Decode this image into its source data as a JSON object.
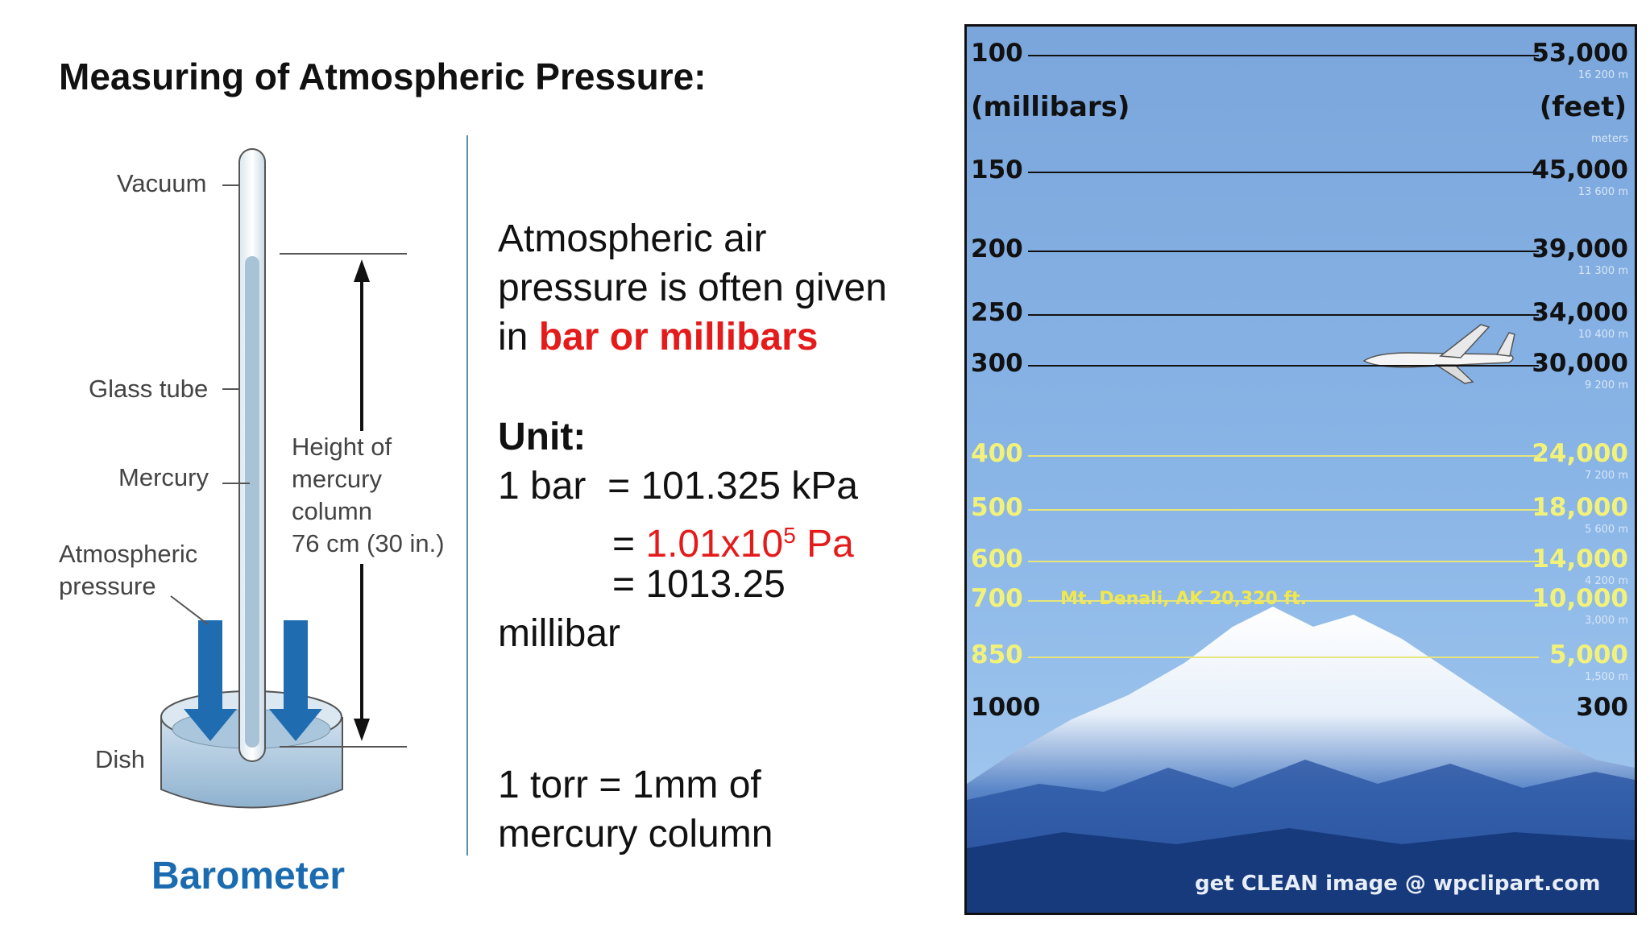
{
  "slide": {
    "title": "Measuring of Atmospheric Pressure:"
  },
  "barometer": {
    "labels": {
      "vacuum": "Vacuum",
      "glass_tube": "Glass tube",
      "mercury": "Mercury",
      "atmospheric_pressure_1": "Atmospheric",
      "atmospheric_pressure_2": "pressure",
      "dish": "Dish",
      "height_1": "Height of",
      "height_2": "mercury",
      "height_3": "column",
      "height_4": "76 cm (30 in.)"
    },
    "caption": "Barometer"
  },
  "text": {
    "intro_1": "Atmospheric air",
    "intro_2": "pressure is often given",
    "intro_3_prefix": "in ",
    "intro_3_highlight": "bar or millibars",
    "unit_heading": "Unit:",
    "eq_1": "1 bar  = 101.325 kPa",
    "eq_2_prefix": "= ",
    "eq_2_value": "1.01x10",
    "eq_2_exp": "5",
    "eq_2_unit": " Pa",
    "eq_3": "= 1013.25",
    "eq_3_cont": "millibar",
    "torr_1": "1 torr = 1mm of",
    "torr_2": "mercury column"
  },
  "altitude_chart": {
    "left_header": "(millibars)",
    "right_header": "(feet)",
    "right_sub": "meters",
    "rows": [
      {
        "mb": "100",
        "feet": "53,000",
        "m": "16 200 m"
      },
      {
        "mb": "150",
        "feet": "45,000",
        "m": "13 600 m"
      },
      {
        "mb": "200",
        "feet": "39,000",
        "m": "11 300 m"
      },
      {
        "mb": "250",
        "feet": "34,000",
        "m": "10 400 m"
      },
      {
        "mb": "300",
        "feet": "30,000",
        "m": "9 200 m"
      },
      {
        "mb": "400",
        "feet": "24,000",
        "m": "7 200 m"
      },
      {
        "mb": "500",
        "feet": "18,000",
        "m": "5 600 m"
      },
      {
        "mb": "600",
        "feet": "14,000",
        "m": "4 200 m"
      },
      {
        "mb": "700",
        "feet": "10,000",
        "m": "3,000 m"
      },
      {
        "mb": "850",
        "feet": "5,000",
        "m": "1,500 m"
      },
      {
        "mb": "1000",
        "feet": "300",
        "m": ""
      }
    ],
    "mountain_label": "Mt. Denali, AK  20,320 ft.",
    "watermark": "get CLEAN image @ wpclipart.com",
    "colors": {
      "sky": "#88b4e6",
      "mountain_label": "#f2e84a",
      "lower_line": "#e8e57a"
    }
  }
}
